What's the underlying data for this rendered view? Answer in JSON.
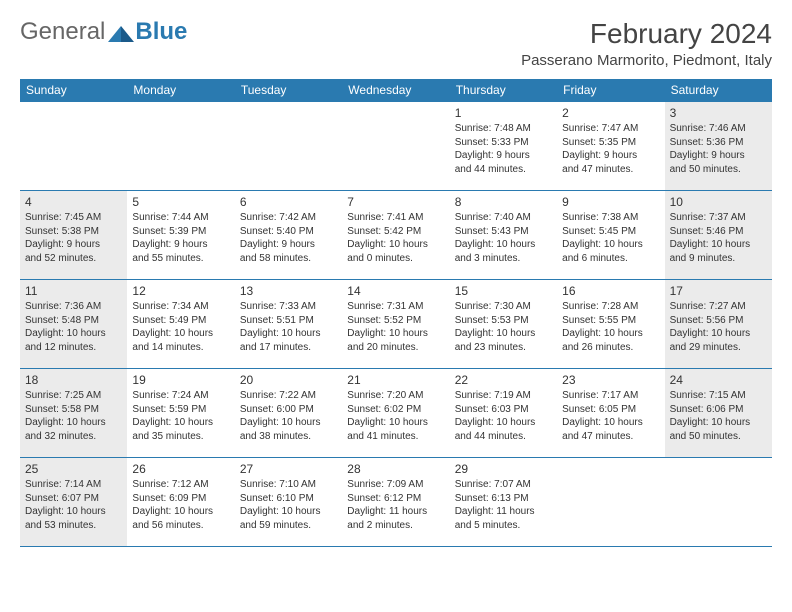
{
  "logo": {
    "general": "General",
    "blue": "Blue"
  },
  "title": "February 2024",
  "location": "Passerano Marmorito, Piedmont, Italy",
  "colors": {
    "header_bg": "#2a7ab0",
    "header_text": "#ffffff",
    "border": "#2a7ab0",
    "shaded_bg": "#ebebeb",
    "body_text": "#333333",
    "page_bg": "#ffffff"
  },
  "weekdays": [
    "Sunday",
    "Monday",
    "Tuesday",
    "Wednesday",
    "Thursday",
    "Friday",
    "Saturday"
  ],
  "weeks": [
    [
      {
        "empty": true
      },
      {
        "empty": true
      },
      {
        "empty": true
      },
      {
        "empty": true
      },
      {
        "day": "1",
        "sunrise": "Sunrise: 7:48 AM",
        "sunset": "Sunset: 5:33 PM",
        "daylight1": "Daylight: 9 hours",
        "daylight2": "and 44 minutes."
      },
      {
        "day": "2",
        "sunrise": "Sunrise: 7:47 AM",
        "sunset": "Sunset: 5:35 PM",
        "daylight1": "Daylight: 9 hours",
        "daylight2": "and 47 minutes."
      },
      {
        "day": "3",
        "sunrise": "Sunrise: 7:46 AM",
        "sunset": "Sunset: 5:36 PM",
        "daylight1": "Daylight: 9 hours",
        "daylight2": "and 50 minutes.",
        "shaded": true
      }
    ],
    [
      {
        "day": "4",
        "sunrise": "Sunrise: 7:45 AM",
        "sunset": "Sunset: 5:38 PM",
        "daylight1": "Daylight: 9 hours",
        "daylight2": "and 52 minutes.",
        "shaded": true
      },
      {
        "day": "5",
        "sunrise": "Sunrise: 7:44 AM",
        "sunset": "Sunset: 5:39 PM",
        "daylight1": "Daylight: 9 hours",
        "daylight2": "and 55 minutes."
      },
      {
        "day": "6",
        "sunrise": "Sunrise: 7:42 AM",
        "sunset": "Sunset: 5:40 PM",
        "daylight1": "Daylight: 9 hours",
        "daylight2": "and 58 minutes."
      },
      {
        "day": "7",
        "sunrise": "Sunrise: 7:41 AM",
        "sunset": "Sunset: 5:42 PM",
        "daylight1": "Daylight: 10 hours",
        "daylight2": "and 0 minutes."
      },
      {
        "day": "8",
        "sunrise": "Sunrise: 7:40 AM",
        "sunset": "Sunset: 5:43 PM",
        "daylight1": "Daylight: 10 hours",
        "daylight2": "and 3 minutes."
      },
      {
        "day": "9",
        "sunrise": "Sunrise: 7:38 AM",
        "sunset": "Sunset: 5:45 PM",
        "daylight1": "Daylight: 10 hours",
        "daylight2": "and 6 minutes."
      },
      {
        "day": "10",
        "sunrise": "Sunrise: 7:37 AM",
        "sunset": "Sunset: 5:46 PM",
        "daylight1": "Daylight: 10 hours",
        "daylight2": "and 9 minutes.",
        "shaded": true
      }
    ],
    [
      {
        "day": "11",
        "sunrise": "Sunrise: 7:36 AM",
        "sunset": "Sunset: 5:48 PM",
        "daylight1": "Daylight: 10 hours",
        "daylight2": "and 12 minutes.",
        "shaded": true
      },
      {
        "day": "12",
        "sunrise": "Sunrise: 7:34 AM",
        "sunset": "Sunset: 5:49 PM",
        "daylight1": "Daylight: 10 hours",
        "daylight2": "and 14 minutes."
      },
      {
        "day": "13",
        "sunrise": "Sunrise: 7:33 AM",
        "sunset": "Sunset: 5:51 PM",
        "daylight1": "Daylight: 10 hours",
        "daylight2": "and 17 minutes."
      },
      {
        "day": "14",
        "sunrise": "Sunrise: 7:31 AM",
        "sunset": "Sunset: 5:52 PM",
        "daylight1": "Daylight: 10 hours",
        "daylight2": "and 20 minutes."
      },
      {
        "day": "15",
        "sunrise": "Sunrise: 7:30 AM",
        "sunset": "Sunset: 5:53 PM",
        "daylight1": "Daylight: 10 hours",
        "daylight2": "and 23 minutes."
      },
      {
        "day": "16",
        "sunrise": "Sunrise: 7:28 AM",
        "sunset": "Sunset: 5:55 PM",
        "daylight1": "Daylight: 10 hours",
        "daylight2": "and 26 minutes."
      },
      {
        "day": "17",
        "sunrise": "Sunrise: 7:27 AM",
        "sunset": "Sunset: 5:56 PM",
        "daylight1": "Daylight: 10 hours",
        "daylight2": "and 29 minutes.",
        "shaded": true
      }
    ],
    [
      {
        "day": "18",
        "sunrise": "Sunrise: 7:25 AM",
        "sunset": "Sunset: 5:58 PM",
        "daylight1": "Daylight: 10 hours",
        "daylight2": "and 32 minutes.",
        "shaded": true
      },
      {
        "day": "19",
        "sunrise": "Sunrise: 7:24 AM",
        "sunset": "Sunset: 5:59 PM",
        "daylight1": "Daylight: 10 hours",
        "daylight2": "and 35 minutes."
      },
      {
        "day": "20",
        "sunrise": "Sunrise: 7:22 AM",
        "sunset": "Sunset: 6:00 PM",
        "daylight1": "Daylight: 10 hours",
        "daylight2": "and 38 minutes."
      },
      {
        "day": "21",
        "sunrise": "Sunrise: 7:20 AM",
        "sunset": "Sunset: 6:02 PM",
        "daylight1": "Daylight: 10 hours",
        "daylight2": "and 41 minutes."
      },
      {
        "day": "22",
        "sunrise": "Sunrise: 7:19 AM",
        "sunset": "Sunset: 6:03 PM",
        "daylight1": "Daylight: 10 hours",
        "daylight2": "and 44 minutes."
      },
      {
        "day": "23",
        "sunrise": "Sunrise: 7:17 AM",
        "sunset": "Sunset: 6:05 PM",
        "daylight1": "Daylight: 10 hours",
        "daylight2": "and 47 minutes."
      },
      {
        "day": "24",
        "sunrise": "Sunrise: 7:15 AM",
        "sunset": "Sunset: 6:06 PM",
        "daylight1": "Daylight: 10 hours",
        "daylight2": "and 50 minutes.",
        "shaded": true
      }
    ],
    [
      {
        "day": "25",
        "sunrise": "Sunrise: 7:14 AM",
        "sunset": "Sunset: 6:07 PM",
        "daylight1": "Daylight: 10 hours",
        "daylight2": "and 53 minutes.",
        "shaded": true
      },
      {
        "day": "26",
        "sunrise": "Sunrise: 7:12 AM",
        "sunset": "Sunset: 6:09 PM",
        "daylight1": "Daylight: 10 hours",
        "daylight2": "and 56 minutes."
      },
      {
        "day": "27",
        "sunrise": "Sunrise: 7:10 AM",
        "sunset": "Sunset: 6:10 PM",
        "daylight1": "Daylight: 10 hours",
        "daylight2": "and 59 minutes."
      },
      {
        "day": "28",
        "sunrise": "Sunrise: 7:09 AM",
        "sunset": "Sunset: 6:12 PM",
        "daylight1": "Daylight: 11 hours",
        "daylight2": "and 2 minutes."
      },
      {
        "day": "29",
        "sunrise": "Sunrise: 7:07 AM",
        "sunset": "Sunset: 6:13 PM",
        "daylight1": "Daylight: 11 hours",
        "daylight2": "and 5 minutes."
      },
      {
        "empty": true
      },
      {
        "empty": true
      }
    ]
  ]
}
